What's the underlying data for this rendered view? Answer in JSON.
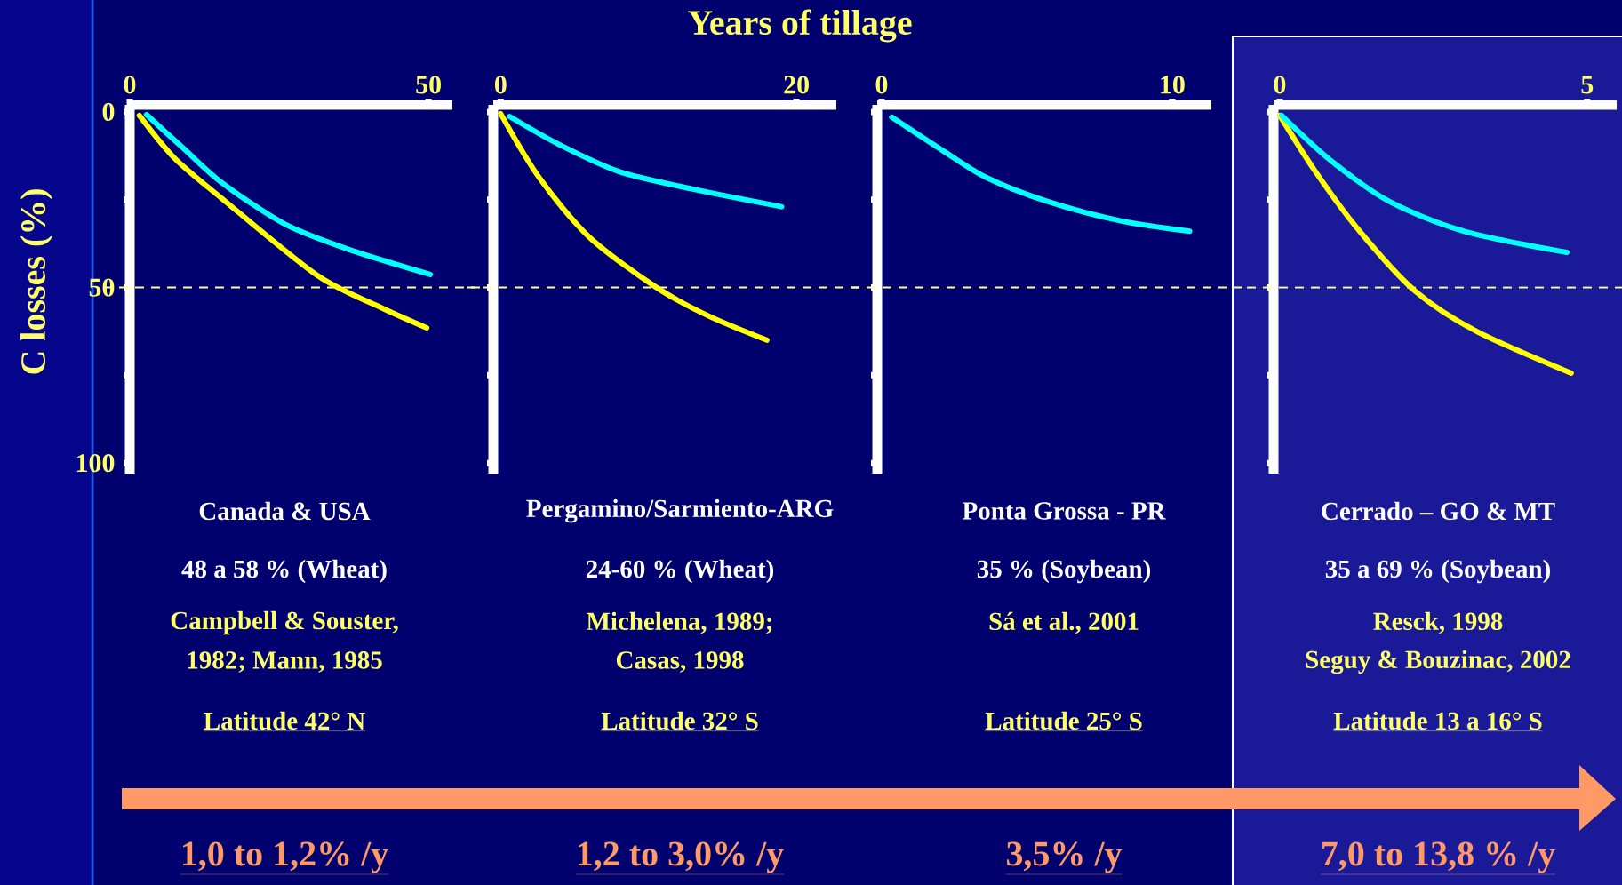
{
  "chart_data": [
    {
      "type": "line",
      "ylabel": "C losses (%)",
      "marker": "none",
      "xlim": [
        0,
        54
      ],
      "xticks": [
        0,
        50
      ],
      "ylim": [
        103,
        -2
      ],
      "yticks": [
        0,
        {
          "value": 25,
          "label": null
        },
        50,
        {
          "value": 75,
          "label": null
        },
        100
      ],
      "ref_lines": [
        {
          "axis": "y",
          "value": 50,
          "color": "#ffff99",
          "line_style": "dashed"
        }
      ],
      "series": [
        {
          "color": "#ffff00",
          "x": [
            1.6,
            7.5,
            15.5,
            31.4,
            42,
            49.7
          ],
          "values": [
            1,
            13.2,
            24.8,
            46.6,
            55.7,
            61.5
          ]
        },
        {
          "color": "#00ffff",
          "x": [
            2.8,
            9,
            15.5,
            26,
            36.7,
            50.3
          ],
          "values": [
            0.8,
            10.4,
            20.3,
            32,
            39.2,
            46.3
          ]
        }
      ],
      "annotations": [
        "Canada & USA",
        "48 a 58 % (Wheat)",
        "Campbell & Souster,",
        "1982; Mann, 1985",
        "Latitude 42° N",
        "1,0 to 1,2% /y"
      ]
    },
    {
      "type": "line",
      "xlabel": "Years of tillage",
      "marker": "none",
      "tick_labels": "x",
      "xlim": [
        -0.5,
        22.7
      ],
      "xticks": [
        0,
        20
      ],
      "ylim": [
        103,
        -2
      ],
      "yticks": [
        {
          "value": 0,
          "label": null
        },
        {
          "value": 25,
          "label": null
        },
        {
          "value": 50,
          "label": null
        },
        {
          "value": 75,
          "label": null
        },
        {
          "value": 100,
          "label": null
        }
      ],
      "ref_lines": [
        {
          "axis": "y",
          "value": 50,
          "color": "#ffff99",
          "line_style": "dashed"
        }
      ],
      "series": [
        {
          "color": "#ffff00",
          "x": [
            0,
            2.6,
            6,
            10.5,
            14,
            18
          ],
          "values": [
            0.5,
            18.7,
            35.7,
            49.9,
            58,
            65
          ]
        },
        {
          "color": "#00ffff",
          "x": [
            0.6,
            4,
            8,
            13,
            19
          ],
          "values": [
            1.3,
            9.4,
            17,
            22,
            27
          ]
        }
      ],
      "annotations": [
        "Pergamino/Sarmiento-ARG",
        "24-60 % (Wheat)",
        "Michelena, 1989;",
        "Casas, 1998",
        "Latitude 32° S",
        "1,2 to 3,0% /y"
      ]
    },
    {
      "type": "line",
      "marker": "none",
      "tick_labels": "x",
      "xlim": [
        -0.15,
        11.35
      ],
      "xticks": [
        0,
        10
      ],
      "ylim": [
        103,
        -2
      ],
      "yticks": [
        {
          "value": 0,
          "label": null
        },
        {
          "value": 25,
          "label": null
        },
        {
          "value": 50,
          "label": null
        },
        {
          "value": 75,
          "label": null
        },
        {
          "value": 100,
          "label": null
        }
      ],
      "ref_lines": [
        {
          "axis": "y",
          "value": 50,
          "color": "#ffff99",
          "line_style": "dashed"
        }
      ],
      "series": [
        {
          "color": "#00ffff",
          "x": [
            0.35,
            2.1,
            3.6,
            5.7,
            8.2,
            10.6
          ],
          "values": [
            1.5,
            11,
            18.7,
            25.5,
            31,
            34
          ]
        }
      ],
      "annotations": [
        "Ponta Grossa - PR",
        "35 % (Soybean)",
        "Sá et al., 2001",
        "Latitude 25° S",
        "3,5% /y"
      ]
    },
    {
      "type": "line",
      "marker": "none",
      "tick_labels": "x",
      "xlim": [
        -0.1,
        5.48
      ],
      "xticks": [
        0,
        5
      ],
      "ylim": [
        103,
        -2
      ],
      "yticks": [
        {
          "value": 0,
          "label": null
        },
        {
          "value": 25,
          "label": null
        },
        {
          "value": 50,
          "label": null
        },
        {
          "value": 75,
          "label": null
        },
        {
          "value": 100,
          "label": null
        }
      ],
      "ref_lines": [
        {
          "axis": "y",
          "value": 50,
          "color": "#ffff99",
          "line_style": "dashed"
        }
      ],
      "series": [
        {
          "color": "#ffff00",
          "x": [
            0,
            0.58,
            1.3,
            2.2,
            3.2,
            4.74
          ],
          "values": [
            1,
            17,
            34,
            51,
            62.5,
            74.4
          ]
        },
        {
          "color": "#00ffff",
          "x": [
            0.03,
            0.82,
            1.78,
            3,
            4.67
          ],
          "values": [
            1,
            13.7,
            25.5,
            34,
            40
          ]
        }
      ],
      "annotations": [
        "Cerrado – GO & MT",
        "35 a 69 % (Soybean)",
        "Resck, 1998",
        "Seguy & Bouzinac, 2002",
        "Latitude 13 a 16° S",
        "7,0 to 13,8 % /y"
      ]
    }
  ]
}
